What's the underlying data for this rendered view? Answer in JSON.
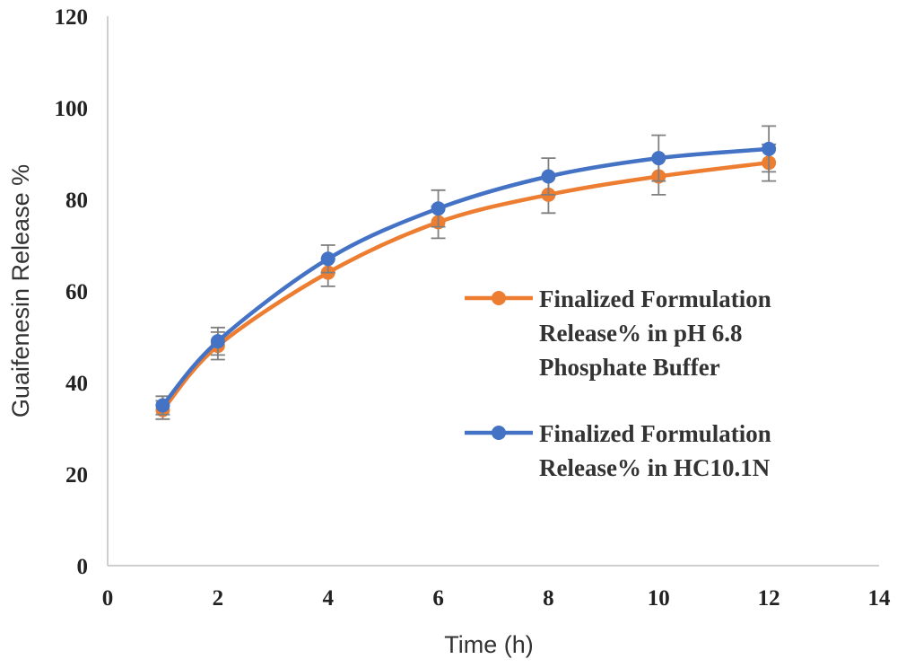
{
  "chart_data": {
    "type": "line",
    "title": "",
    "xlabel": "Time (h)",
    "ylabel": "Guaifenesin Release %",
    "xlim": [
      0,
      14
    ],
    "ylim": [
      0,
      120
    ],
    "xticks": [
      0,
      2,
      4,
      6,
      8,
      10,
      12,
      14
    ],
    "yticks": [
      0,
      20,
      40,
      60,
      80,
      100,
      120
    ],
    "grid": false,
    "legend_position": "right",
    "series": [
      {
        "name": "Finalized Formulation Release% in pH 6.8 Phosphate Buffer",
        "legend_lines": [
          "Finalized Formulation",
          "Release% in pH 6.8",
          "Phosphate Buffer"
        ],
        "color": "#ED7D31",
        "x": [
          1,
          2,
          4,
          6,
          8,
          10,
          12
        ],
        "y": [
          34,
          48,
          64,
          75,
          81,
          85,
          88
        ],
        "error": [
          2,
          3,
          3,
          3.5,
          4,
          4,
          4
        ]
      },
      {
        "name": "Finalized Formulation Release% in HC10.1N",
        "legend_lines": [
          "Finalized Formulation",
          "Release% in HC10.1N"
        ],
        "color": "#4472C4",
        "x": [
          1,
          2,
          4,
          6,
          8,
          10,
          12
        ],
        "y": [
          35,
          49,
          67,
          78,
          85,
          89,
          91
        ],
        "error": [
          2,
          3,
          3,
          4,
          4,
          5,
          5
        ]
      }
    ]
  }
}
